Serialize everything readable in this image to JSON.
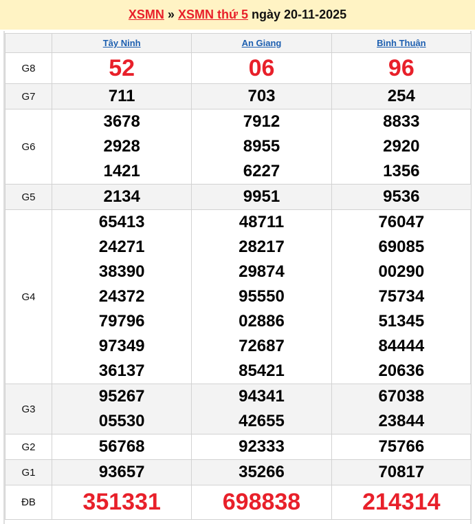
{
  "header": {
    "link1": "XSMN",
    "separator": "»",
    "link2": "XSMN thứ 5",
    "date_text": "ngày 20-11-2025"
  },
  "colors": {
    "accent_red": "#e8202a",
    "link_blue": "#1d5fb0",
    "header_bg": "#fff3c4",
    "alt_row_bg": "#f3f3f3"
  },
  "provinces": [
    "Tây Ninh",
    "An Giang",
    "Bình Thuận"
  ],
  "prizes": [
    {
      "label": "G8",
      "values": [
        [
          "52"
        ],
        [
          "06"
        ],
        [
          "96"
        ]
      ],
      "highlight": true
    },
    {
      "label": "G7",
      "values": [
        [
          "711"
        ],
        [
          "703"
        ],
        [
          "254"
        ]
      ]
    },
    {
      "label": "G6",
      "values": [
        [
          "3678",
          "2928",
          "1421"
        ],
        [
          "7912",
          "8955",
          "6227"
        ],
        [
          "8833",
          "2920",
          "1356"
        ]
      ]
    },
    {
      "label": "G5",
      "values": [
        [
          "2134"
        ],
        [
          "9951"
        ],
        [
          "9536"
        ]
      ]
    },
    {
      "label": "G4",
      "values": [
        [
          "65413",
          "24271",
          "38390",
          "24372",
          "79796",
          "97349",
          "36137"
        ],
        [
          "48711",
          "28217",
          "29874",
          "95550",
          "02886",
          "72687",
          "85421"
        ],
        [
          "76047",
          "69085",
          "00290",
          "75734",
          "51345",
          "84444",
          "20636"
        ]
      ]
    },
    {
      "label": "G3",
      "values": [
        [
          "95267",
          "05530"
        ],
        [
          "94341",
          "42655"
        ],
        [
          "67038",
          "23844"
        ]
      ]
    },
    {
      "label": "G2",
      "values": [
        [
          "56768"
        ],
        [
          "92333"
        ],
        [
          "75766"
        ]
      ]
    },
    {
      "label": "G1",
      "values": [
        [
          "93657"
        ],
        [
          "35266"
        ],
        [
          "70817"
        ]
      ]
    },
    {
      "label": "ĐB",
      "values": [
        [
          "351331"
        ],
        [
          "698838"
        ],
        [
          "214314"
        ]
      ],
      "highlight": true
    }
  ]
}
